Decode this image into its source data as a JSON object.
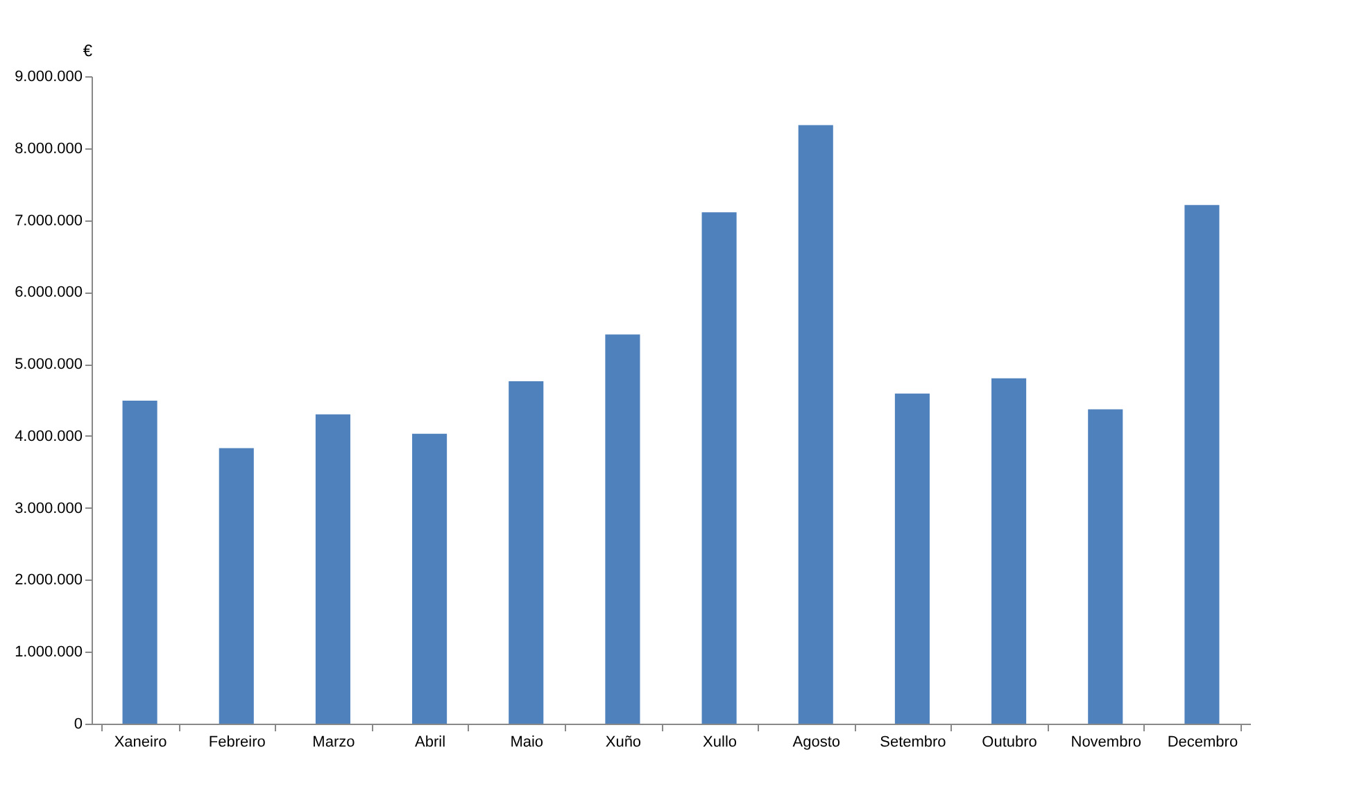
{
  "chart_data": {
    "type": "bar",
    "ylabel": "€",
    "categories": [
      "Xaneiro",
      "Febreiro",
      "Marzo",
      "Abril",
      "Maio",
      "Xuño",
      "Xullo",
      "Agosto",
      "Setembro",
      "Outubro",
      "Novembro",
      "Decembro"
    ],
    "values": [
      4490000,
      3830000,
      4300000,
      4030000,
      4760000,
      5410000,
      7110000,
      8320000,
      4590000,
      4800000,
      4370000,
      7210000
    ],
    "color": "#4f81bd",
    "ylim": [
      0,
      9000000
    ],
    "yticks": [
      {
        "value": 0,
        "label": "0"
      },
      {
        "value": 1000000,
        "label": "1.000.000"
      },
      {
        "value": 2000000,
        "label": "2.000.000"
      },
      {
        "value": 3000000,
        "label": "3.000.000"
      },
      {
        "value": 4000000,
        "label": "4.000.000"
      },
      {
        "value": 5000000,
        "label": "5.000.000"
      },
      {
        "value": 6000000,
        "label": "6.000.000"
      },
      {
        "value": 7000000,
        "label": "7.000.000"
      },
      {
        "value": 8000000,
        "label": "8.000.000"
      },
      {
        "value": 9000000,
        "label": "9.000.000"
      }
    ],
    "grid": false
  }
}
